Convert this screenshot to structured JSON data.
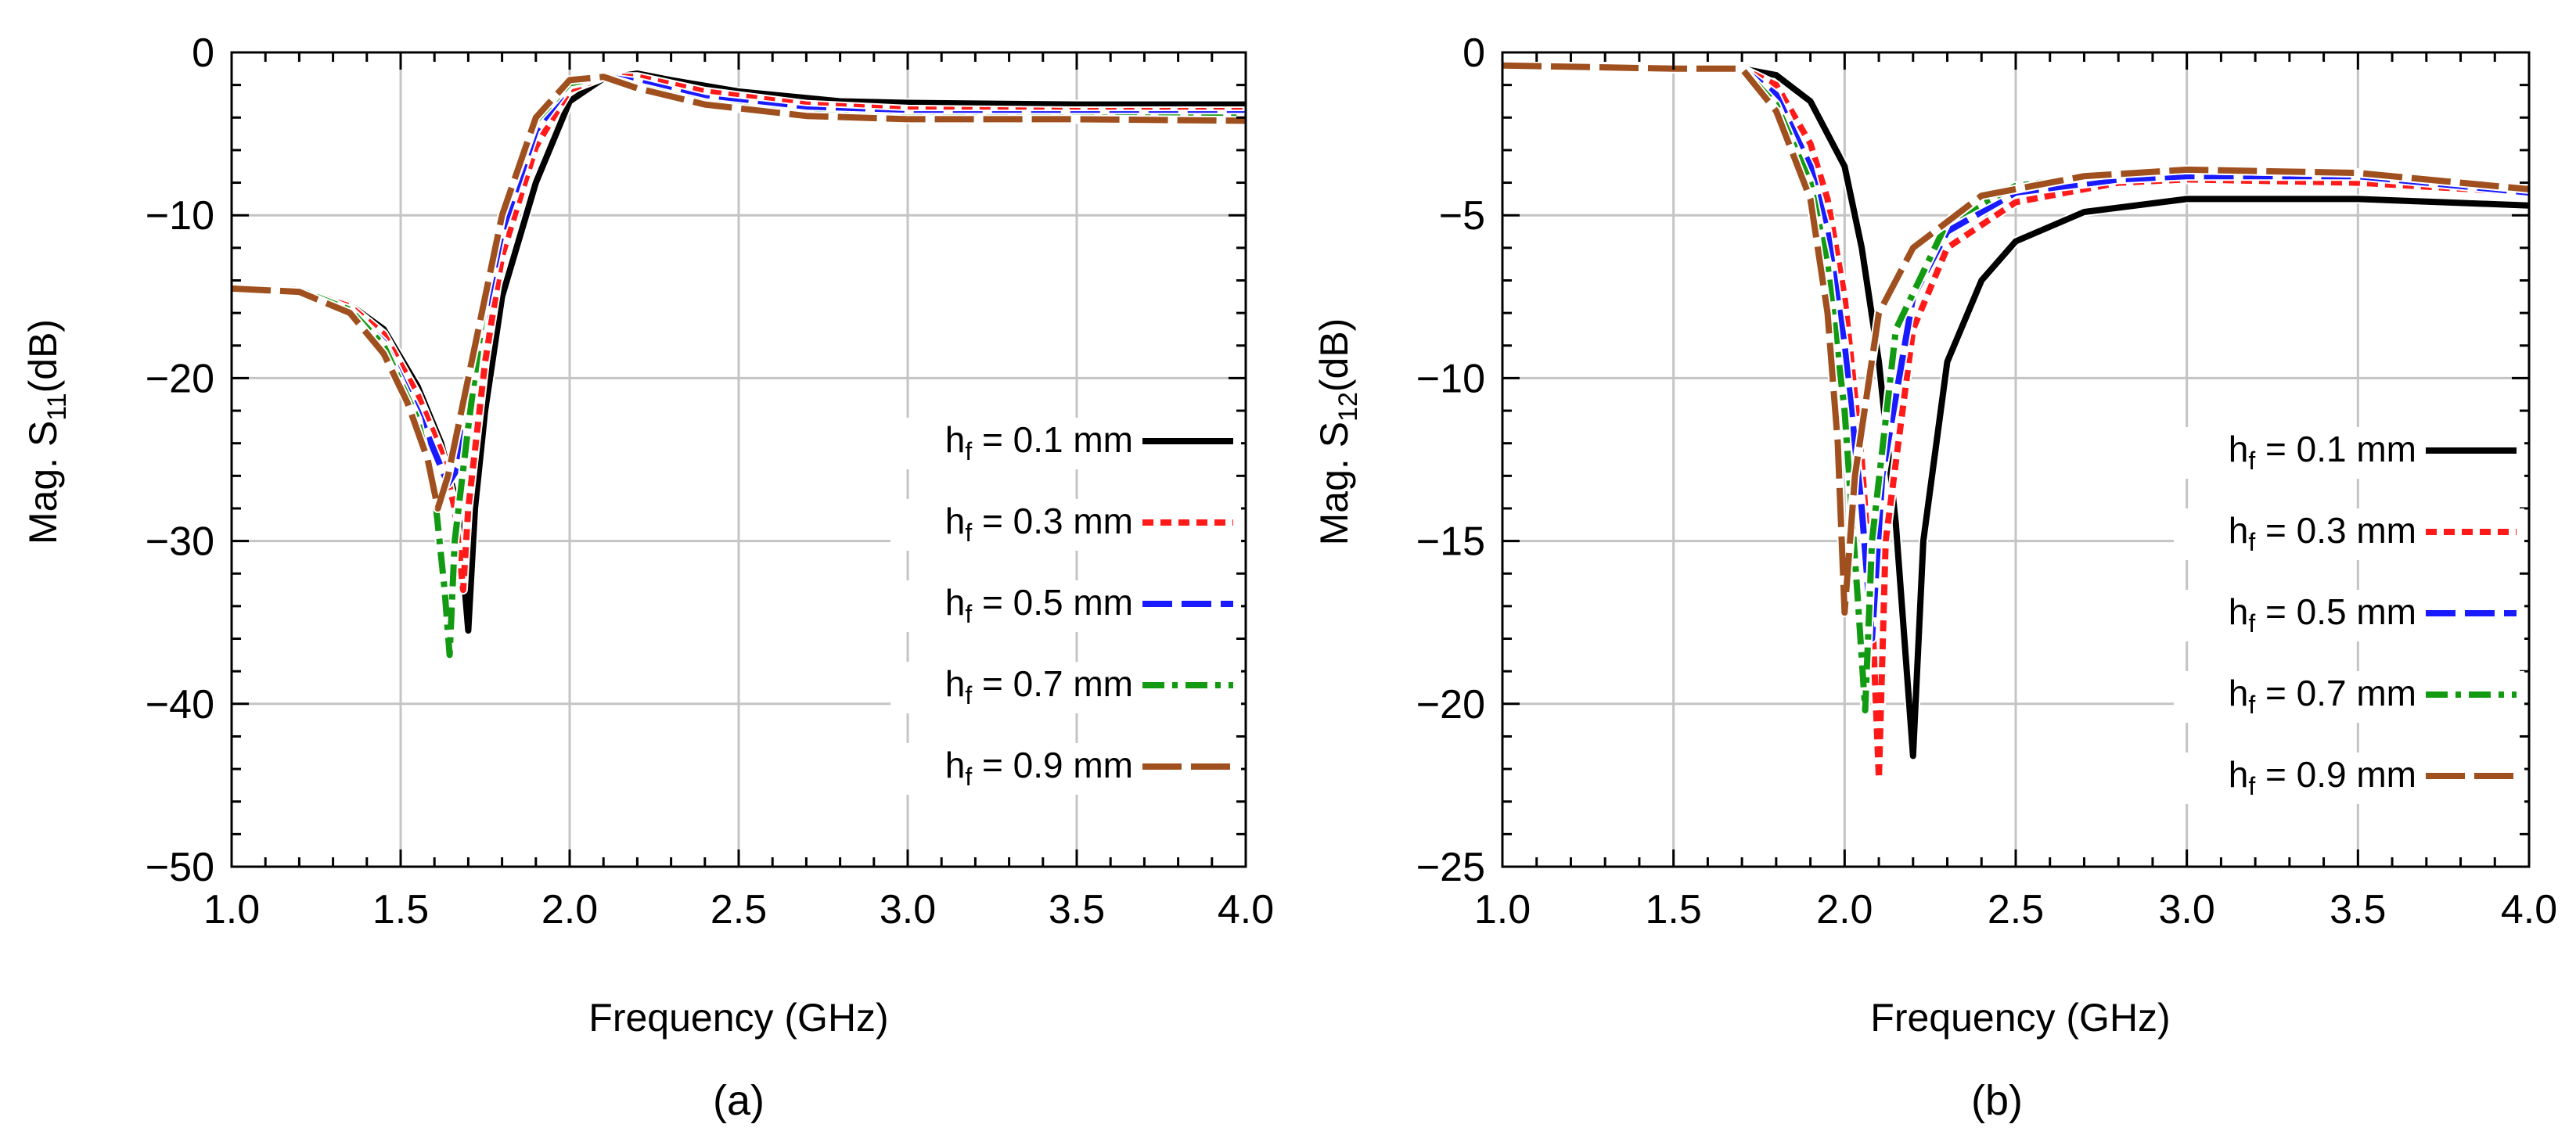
{
  "figure": {
    "panel_labels": [
      "(a)",
      "(b)"
    ]
  },
  "legend_entries": [
    {
      "h": "h",
      "sub": "f",
      "rest": " = 0.1 mm",
      "color": "#000000",
      "dash": "solid"
    },
    {
      "h": "h",
      "sub": "f",
      "rest": " = 0.3 mm",
      "color": "#ff1a1a",
      "dash": "short"
    },
    {
      "h": "h",
      "sub": "f",
      "rest": " = 0.5 mm",
      "color": "#1a1aff",
      "dash": "long"
    },
    {
      "h": "h",
      "sub": "f",
      "rest": " = 0.7 mm",
      "color": "#129a12",
      "dash": "dashdot"
    },
    {
      "h": "h",
      "sub": "f",
      "rest": " = 0.9 mm",
      "color": "#a0501e",
      "dash": "longlong"
    }
  ],
  "chart_data": [
    {
      "type": "line",
      "panel": "(a)",
      "title": "",
      "xlabel": "Frequency (GHz)",
      "ylabel_main": "Mag. S",
      "ylabel_sub": "11",
      "ylabel_tail": "(dB)",
      "xlim": [
        1.0,
        4.0
      ],
      "ylim": [
        -50,
        0
      ],
      "xticks": [
        1.0,
        1.5,
        2.0,
        2.5,
        3.0,
        3.5,
        4.0
      ],
      "xtick_labels": [
        "1.0",
        "1.5",
        "2.0",
        "2.5",
        "3.0",
        "3.5",
        "4.0"
      ],
      "yticks": [
        0,
        -10,
        -20,
        -30,
        -40,
        -50
      ],
      "ytick_labels": [
        "0",
        "−10",
        "−20",
        "−30",
        "−40",
        "−50"
      ],
      "grid": true,
      "legend_position": "lower-right",
      "series": [
        {
          "name": "hf = 0.1 mm",
          "color": "#000000",
          "points": [
            [
              1.0,
              -14.5
            ],
            [
              1.2,
              -14.6
            ],
            [
              1.35,
              -15.5
            ],
            [
              1.45,
              -17
            ],
            [
              1.55,
              -20.5
            ],
            [
              1.62,
              -24
            ],
            [
              1.67,
              -28
            ],
            [
              1.7,
              -35.5
            ],
            [
              1.72,
              -28
            ],
            [
              1.75,
              -22
            ],
            [
              1.8,
              -15
            ],
            [
              1.9,
              -8
            ],
            [
              2.0,
              -3
            ],
            [
              2.1,
              -1.6
            ],
            [
              2.2,
              -1.3
            ],
            [
              2.3,
              -1.7
            ],
            [
              2.5,
              -2.4
            ],
            [
              2.8,
              -3.0
            ],
            [
              3.0,
              -3.1
            ],
            [
              3.5,
              -3.2
            ],
            [
              4.0,
              -3.2
            ]
          ]
        },
        {
          "name": "hf = 0.3 mm",
          "color": "#ff1a1a",
          "points": [
            [
              1.0,
              -14.5
            ],
            [
              1.2,
              -14.6
            ],
            [
              1.35,
              -15.6
            ],
            [
              1.45,
              -17.3
            ],
            [
              1.55,
              -21
            ],
            [
              1.62,
              -24.5
            ],
            [
              1.66,
              -28
            ],
            [
              1.685,
              -33
            ],
            [
              1.7,
              -28
            ],
            [
              1.75,
              -19
            ],
            [
              1.8,
              -12.5
            ],
            [
              1.9,
              -5.8
            ],
            [
              2.0,
              -2.3
            ],
            [
              2.1,
              -1.5
            ],
            [
              2.2,
              -1.5
            ],
            [
              2.4,
              -2.4
            ],
            [
              2.7,
              -3.2
            ],
            [
              3.0,
              -3.5
            ],
            [
              3.5,
              -3.6
            ],
            [
              4.0,
              -3.6
            ]
          ]
        },
        {
          "name": "hf = 0.5 mm",
          "color": "#1a1aff",
          "points": [
            [
              1.0,
              -14.5
            ],
            [
              1.2,
              -14.6
            ],
            [
              1.35,
              -15.8
            ],
            [
              1.45,
              -17.8
            ],
            [
              1.55,
              -22
            ],
            [
              1.6,
              -24.5
            ],
            [
              1.64,
              -26.5
            ],
            [
              1.67,
              -25.5
            ],
            [
              1.72,
              -19
            ],
            [
              1.8,
              -11
            ],
            [
              1.9,
              -4.8
            ],
            [
              2.0,
              -2.0
            ],
            [
              2.1,
              -1.5
            ],
            [
              2.2,
              -1.8
            ],
            [
              2.4,
              -2.8
            ],
            [
              2.7,
              -3.5
            ],
            [
              3.0,
              -3.8
            ],
            [
              3.5,
              -3.8
            ],
            [
              4.0,
              -3.8
            ]
          ]
        },
        {
          "name": "hf = 0.7 mm",
          "color": "#129a12",
          "points": [
            [
              1.0,
              -14.5
            ],
            [
              1.2,
              -14.6
            ],
            [
              1.35,
              -15.8
            ],
            [
              1.45,
              -18
            ],
            [
              1.55,
              -22.5
            ],
            [
              1.6,
              -27
            ],
            [
              1.63,
              -33
            ],
            [
              1.645,
              -37
            ],
            [
              1.66,
              -30
            ],
            [
              1.7,
              -23
            ],
            [
              1.75,
              -15
            ],
            [
              1.8,
              -10
            ],
            [
              1.9,
              -4.2
            ],
            [
              2.0,
              -1.9
            ],
            [
              2.1,
              -1.5
            ],
            [
              2.2,
              -2.1
            ],
            [
              2.4,
              -3.1
            ],
            [
              2.7,
              -3.8
            ],
            [
              3.0,
              -4.0
            ],
            [
              3.5,
              -4.0
            ],
            [
              4.0,
              -4.0
            ]
          ]
        },
        {
          "name": "hf = 0.9 mm",
          "color": "#a0501e",
          "points": [
            [
              1.0,
              -14.5
            ],
            [
              1.2,
              -14.7
            ],
            [
              1.35,
              -16
            ],
            [
              1.45,
              -18.5
            ],
            [
              1.52,
              -21.5
            ],
            [
              1.58,
              -25
            ],
            [
              1.61,
              -28
            ],
            [
              1.64,
              -26
            ],
            [
              1.7,
              -20
            ],
            [
              1.8,
              -10
            ],
            [
              1.9,
              -4
            ],
            [
              2.0,
              -1.7
            ],
            [
              2.1,
              -1.5
            ],
            [
              2.2,
              -2.2
            ],
            [
              2.4,
              -3.2
            ],
            [
              2.7,
              -3.9
            ],
            [
              3.0,
              -4.1
            ],
            [
              3.5,
              -4.1
            ],
            [
              4.0,
              -4.2
            ]
          ]
        }
      ]
    },
    {
      "type": "line",
      "panel": "(b)",
      "title": "",
      "xlabel": "Frequency (GHz)",
      "ylabel_main": "Mag. S",
      "ylabel_sub": "12",
      "ylabel_tail": "(dB)",
      "xlim": [
        1.0,
        4.0
      ],
      "ylim": [
        -25,
        0
      ],
      "xticks": [
        1.0,
        1.5,
        2.0,
        2.5,
        3.0,
        3.5,
        4.0
      ],
      "xtick_labels": [
        "1.0",
        "1.5",
        "2.0",
        "2.5",
        "3.0",
        "3.5",
        "4.0"
      ],
      "yticks": [
        0,
        -5,
        -10,
        -15,
        -20,
        -25
      ],
      "ytick_labels": [
        "0",
        "−5",
        "−10",
        "−15",
        "−20",
        "−25"
      ],
      "grid": true,
      "legend_position": "lower-right",
      "series": [
        {
          "name": "hf = 0.1 mm",
          "color": "#000000",
          "points": [
            [
              1.0,
              -0.4
            ],
            [
              1.5,
              -0.5
            ],
            [
              1.7,
              -0.5
            ],
            [
              1.8,
              -0.7
            ],
            [
              1.9,
              -1.5
            ],
            [
              2.0,
              -3.5
            ],
            [
              2.05,
              -6
            ],
            [
              2.1,
              -9.5
            ],
            [
              2.15,
              -14.5
            ],
            [
              2.2,
              -21.6
            ],
            [
              2.23,
              -15
            ],
            [
              2.3,
              -9.5
            ],
            [
              2.4,
              -7
            ],
            [
              2.5,
              -5.8
            ],
            [
              2.7,
              -4.9
            ],
            [
              3.0,
              -4.5
            ],
            [
              3.5,
              -4.5
            ],
            [
              4.0,
              -4.7
            ]
          ]
        },
        {
          "name": "hf = 0.3 mm",
          "color": "#ff1a1a",
          "points": [
            [
              1.0,
              -0.4
            ],
            [
              1.5,
              -0.5
            ],
            [
              1.7,
              -0.5
            ],
            [
              1.8,
              -1.0
            ],
            [
              1.9,
              -2.8
            ],
            [
              1.95,
              -4.5
            ],
            [
              2.0,
              -7.5
            ],
            [
              2.05,
              -12.5
            ],
            [
              2.08,
              -17
            ],
            [
              2.1,
              -22.3
            ],
            [
              2.12,
              -15
            ],
            [
              2.2,
              -8.5
            ],
            [
              2.3,
              -6
            ],
            [
              2.5,
              -4.6
            ],
            [
              2.8,
              -4.0
            ],
            [
              3.0,
              -3.9
            ],
            [
              3.5,
              -4.0
            ],
            [
              4.0,
              -4.3
            ]
          ]
        },
        {
          "name": "hf = 0.5 mm",
          "color": "#1a1aff",
          "points": [
            [
              1.0,
              -0.4
            ],
            [
              1.5,
              -0.5
            ],
            [
              1.7,
              -0.5
            ],
            [
              1.8,
              -1.3
            ],
            [
              1.9,
              -3.5
            ],
            [
              1.95,
              -5.5
            ],
            [
              2.0,
              -9
            ],
            [
              2.05,
              -14
            ],
            [
              2.08,
              -18
            ],
            [
              2.11,
              -13
            ],
            [
              2.2,
              -7.5
            ],
            [
              2.3,
              -5.5
            ],
            [
              2.5,
              -4.3
            ],
            [
              2.8,
              -3.9
            ],
            [
              3.0,
              -3.8
            ],
            [
              3.5,
              -3.8
            ],
            [
              4.0,
              -4.3
            ]
          ]
        },
        {
          "name": "hf = 0.7 mm",
          "color": "#129a12",
          "points": [
            [
              1.0,
              -0.4
            ],
            [
              1.5,
              -0.5
            ],
            [
              1.7,
              -0.5
            ],
            [
              1.8,
              -1.6
            ],
            [
              1.9,
              -4
            ],
            [
              1.95,
              -6.5
            ],
            [
              2.0,
              -11
            ],
            [
              2.04,
              -17
            ],
            [
              2.06,
              -20.2
            ],
            [
              2.08,
              -15
            ],
            [
              2.15,
              -8.5
            ],
            [
              2.3,
              -5.2
            ],
            [
              2.5,
              -4.1
            ],
            [
              2.8,
              -3.7
            ],
            [
              3.0,
              -3.6
            ],
            [
              3.5,
              -3.7
            ],
            [
              4.0,
              -4.2
            ]
          ]
        },
        {
          "name": "hf = 0.9 mm",
          "color": "#a0501e",
          "points": [
            [
              1.0,
              -0.4
            ],
            [
              1.5,
              -0.5
            ],
            [
              1.7,
              -0.5
            ],
            [
              1.8,
              -1.8
            ],
            [
              1.9,
              -4.5
            ],
            [
              1.95,
              -8
            ],
            [
              1.98,
              -12
            ],
            [
              2.0,
              -17.2
            ],
            [
              2.03,
              -13
            ],
            [
              2.1,
              -8
            ],
            [
              2.2,
              -6
            ],
            [
              2.4,
              -4.4
            ],
            [
              2.7,
              -3.8
            ],
            [
              3.0,
              -3.6
            ],
            [
              3.5,
              -3.7
            ],
            [
              4.0,
              -4.2
            ]
          ]
        }
      ]
    }
  ]
}
